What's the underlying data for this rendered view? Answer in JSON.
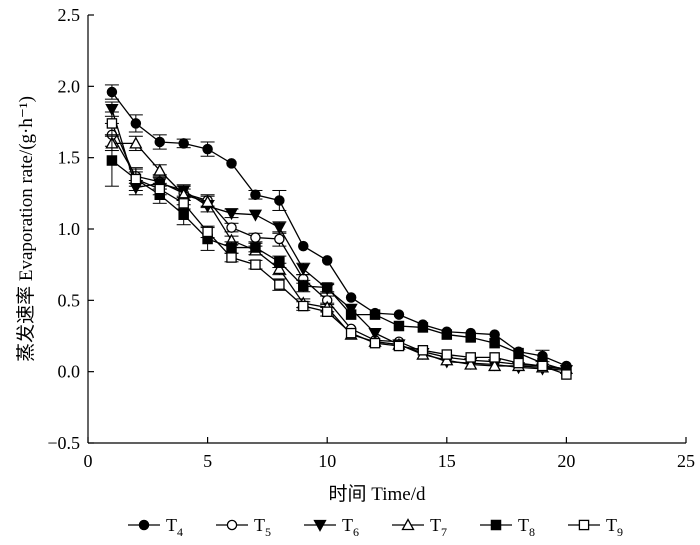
{
  "chart_data": {
    "type": "line",
    "title": "",
    "xlabel": "时间 Time/d",
    "ylabel": "蒸发速率 Evaporation rate/(g·h⁻¹)",
    "xlim": [
      0,
      25
    ],
    "ylim": [
      -0.5,
      2.5
    ],
    "xticks": [
      "0",
      "5",
      "10",
      "15",
      "20",
      "25"
    ],
    "yticks": [
      "−0.5",
      "0.0",
      "0.5",
      "1.0",
      "1.5",
      "2.0",
      "2.5"
    ],
    "grid": false,
    "legend_position": "bottom",
    "x": [
      1,
      2,
      3,
      4,
      5,
      6,
      7,
      8,
      9,
      10,
      11,
      12,
      13,
      14,
      15,
      16,
      17,
      18,
      19,
      20
    ],
    "series": [
      {
        "name": "T",
        "sub": "4",
        "marker": "circle-filled",
        "values": [
          1.96,
          1.74,
          1.61,
          1.6,
          1.56,
          1.46,
          1.24,
          1.2,
          0.88,
          0.78,
          0.52,
          0.41,
          0.4,
          0.33,
          0.28,
          0.27,
          0.26,
          0.14,
          0.11,
          0.04
        ],
        "errors": [
          0.05,
          0.06,
          0.05,
          0.03,
          0.05,
          0.02,
          0.03,
          0.07,
          0.02,
          0.02,
          0.02,
          0.02,
          0.02,
          0.02,
          0.02,
          0.02,
          0.02,
          0.02,
          0.04,
          0.02
        ]
      },
      {
        "name": "T",
        "sub": "5",
        "marker": "circle-open",
        "values": [
          1.66,
          1.37,
          1.33,
          1.25,
          1.2,
          1.01,
          0.94,
          0.93,
          0.65,
          0.5,
          0.3,
          0.22,
          0.21,
          0.14,
          0.1,
          0.08,
          0.07,
          0.05,
          0.04,
          0.02
        ],
        "errors": [
          0.08,
          0.05,
          0.05,
          0.05,
          0.04,
          0.03,
          0.03,
          0.05,
          0.03,
          0.03,
          0.02,
          0.02,
          0.02,
          0.02,
          0.02,
          0.02,
          0.02,
          0.02,
          0.02,
          0.02
        ]
      },
      {
        "name": "T",
        "sub": "6",
        "marker": "triangle-down-filled",
        "values": [
          1.84,
          1.29,
          1.32,
          1.27,
          1.16,
          1.11,
          1.1,
          1.01,
          0.72,
          0.58,
          0.44,
          0.27,
          0.19,
          0.13,
          0.07,
          0.06,
          0.05,
          0.03,
          0.02,
          0.01
        ],
        "errors": [
          0.05,
          0.05,
          0.04,
          0.04,
          0.04,
          0.03,
          0.02,
          0.04,
          0.04,
          0.03,
          0.02,
          0.02,
          0.02,
          0.02,
          0.02,
          0.02,
          0.02,
          0.02,
          0.02,
          0.02
        ]
      },
      {
        "name": "T",
        "sub": "7",
        "marker": "triangle-up-open",
        "values": [
          1.6,
          1.6,
          1.41,
          1.24,
          1.19,
          0.92,
          0.85,
          0.72,
          0.48,
          0.45,
          0.26,
          0.21,
          0.19,
          0.12,
          0.08,
          0.05,
          0.04,
          0.04,
          0.03,
          0.02
        ],
        "errors": [
          0.05,
          0.05,
          0.04,
          0.04,
          0.04,
          0.03,
          0.03,
          0.04,
          0.03,
          0.03,
          0.02,
          0.02,
          0.02,
          0.02,
          0.02,
          0.02,
          0.02,
          0.02,
          0.02,
          0.02
        ]
      },
      {
        "name": "T",
        "sub": "8",
        "marker": "square-filled",
        "values": [
          1.48,
          1.35,
          1.24,
          1.1,
          0.93,
          0.87,
          0.87,
          0.77,
          0.6,
          0.59,
          0.4,
          0.4,
          0.32,
          0.31,
          0.26,
          0.24,
          0.2,
          0.13,
          0.06,
          0.01
        ],
        "errors": [
          0.18,
          0.08,
          0.06,
          0.07,
          0.08,
          0.04,
          0.03,
          0.04,
          0.04,
          0.03,
          0.02,
          0.02,
          0.02,
          0.02,
          0.02,
          0.02,
          0.02,
          0.02,
          0.02,
          0.02
        ]
      },
      {
        "name": "T",
        "sub": "9",
        "marker": "square-open",
        "values": [
          1.74,
          1.35,
          1.28,
          1.18,
          0.98,
          0.8,
          0.75,
          0.61,
          0.46,
          0.42,
          0.27,
          0.2,
          0.18,
          0.15,
          0.12,
          0.1,
          0.1,
          0.06,
          0.04,
          -0.02
        ],
        "errors": [
          0.08,
          0.05,
          0.04,
          0.04,
          0.04,
          0.03,
          0.03,
          0.04,
          0.03,
          0.03,
          0.02,
          0.02,
          0.02,
          0.02,
          0.02,
          0.02,
          0.02,
          0.02,
          0.02,
          0.02
        ]
      }
    ]
  }
}
